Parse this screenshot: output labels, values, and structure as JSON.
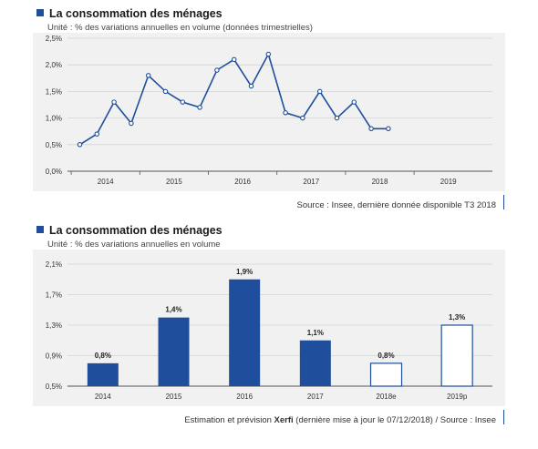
{
  "colors": {
    "accent": "#1f4e9c",
    "plot_bg": "#f1f1f1",
    "hollow_bar": "#ffffff"
  },
  "chart1": {
    "title": "La consommation des ménages",
    "subtitle": "Unité : % des variations annuelles en volume (données trimestrielles)",
    "source": "Source : Insee, dernière donnée disponible T3 2018"
  },
  "chart2": {
    "title": "La consommation des ménages",
    "subtitle": "Unité : % des variations annuelles en volume",
    "source_prefix": "Estimation et prévision ",
    "source_brand": "Xerfi",
    "source_suffix": " (dernière mise à jour le 07/12/2018) / Source : Insee"
  },
  "chart_data": [
    {
      "type": "line",
      "title": "La consommation des ménages",
      "subtitle": "Unité : % des variations annuelles en volume (données trimestrielles)",
      "x_tick_labels": [
        "2014",
        "2015",
        "2016",
        "2017",
        "2018",
        "2019"
      ],
      "y_tick_labels": [
        "0,0%",
        "0,5%",
        "1,0%",
        "1,5%",
        "2,0%",
        "2,5%"
      ],
      "ylim": [
        0,
        2.5
      ],
      "grid": true,
      "series": [
        {
          "x": [
            "2014-T1",
            "2014-T2",
            "2014-T3",
            "2014-T4",
            "2015-T1",
            "2015-T2",
            "2015-T3",
            "2015-T4",
            "2016-T1",
            "2016-T2",
            "2016-T3",
            "2016-T4",
            "2017-T1",
            "2017-T2",
            "2017-T3",
            "2017-T4",
            "2018-T1",
            "2018-T2",
            "2018-T3"
          ],
          "values": [
            0.5,
            0.7,
            1.3,
            0.9,
            1.8,
            1.5,
            1.3,
            1.2,
            1.9,
            2.1,
            1.6,
            2.2,
            1.1,
            1.0,
            1.5,
            1.0,
            1.3,
            0.8,
            0.8
          ]
        }
      ]
    },
    {
      "type": "bar",
      "title": "La consommation des ménages",
      "subtitle": "Unité : % des variations annuelles en volume",
      "categories": [
        "2014",
        "2015",
        "2016",
        "2017",
        "2018e",
        "2019p"
      ],
      "values": [
        0.8,
        1.4,
        1.9,
        1.1,
        0.8,
        1.3
      ],
      "data_labels": [
        "0,8%",
        "1,4%",
        "1,9%",
        "1,1%",
        "0,8%",
        "1,3%"
      ],
      "hollow": [
        false,
        false,
        false,
        false,
        true,
        true
      ],
      "y_tick_labels": [
        "0,5%",
        "0,9%",
        "1,3%",
        "1,7%",
        "2,1%"
      ],
      "ylim": [
        0.5,
        2.1
      ],
      "grid": true
    }
  ]
}
